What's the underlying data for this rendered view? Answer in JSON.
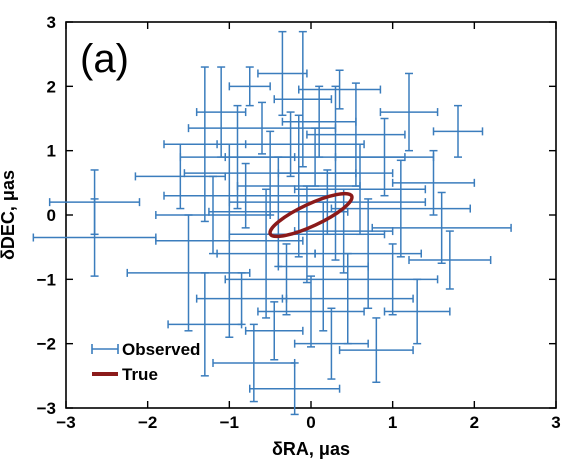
{
  "chart_data": {
    "type": "scatter",
    "panel_label": "(a)",
    "xlabel": "δRA, μas",
    "ylabel": "δDEC, μas",
    "xlim": [
      -3,
      3
    ],
    "ylim": [
      -3,
      3
    ],
    "xticks": [
      "−3",
      "−2",
      "−1",
      "0",
      "1",
      "2",
      "3"
    ],
    "yticks": [
      "−3",
      "−2",
      "−1",
      "0",
      "1",
      "2",
      "3"
    ],
    "grid": false,
    "legend_position": "bottom-left",
    "colors": {
      "observed": "#3b7dbd",
      "true": "#8b1a1a"
    },
    "series": [
      {
        "name": "Observed",
        "style": "errorbar",
        "points": [
          {
            "x": -2.65,
            "y": 0.2,
            "xerr": 0.55,
            "yerr": 0.5
          },
          {
            "x": -2.65,
            "y": -0.35,
            "xerr": 0.75,
            "yerr": 0.6
          },
          {
            "x": -1.6,
            "y": 0.6,
            "xerr": 0.55,
            "yerr": 0.5
          },
          {
            "x": -1.5,
            "y": -0.9,
            "xerr": 0.75,
            "yerr": 0.9
          },
          {
            "x": -1.3,
            "y": 1.1,
            "xerr": 0.5,
            "yerr": 1.2
          },
          {
            "x": -1.3,
            "y": -1.7,
            "xerr": 0.45,
            "yerr": 0.8
          },
          {
            "x": -1.2,
            "y": 0.0,
            "xerr": 0.7,
            "yerr": 0.6
          },
          {
            "x": -1.1,
            "y": 1.6,
            "xerr": 0.3,
            "yerr": 0.7
          },
          {
            "x": -1.0,
            "y": -0.4,
            "xerr": 0.9,
            "yerr": 1.5
          },
          {
            "x": -0.9,
            "y": 0.9,
            "xerr": 0.7,
            "yerr": 0.8
          },
          {
            "x": -0.85,
            "y": -1.3,
            "xerr": 0.55,
            "yerr": 0.4
          },
          {
            "x": -0.8,
            "y": 0.3,
            "xerr": 1.0,
            "yerr": 0.5
          },
          {
            "x": -0.75,
            "y": 2.0,
            "xerr": 0.25,
            "yerr": 0.3
          },
          {
            "x": -0.7,
            "y": -2.3,
            "xerr": 0.5,
            "yerr": 0.6
          },
          {
            "x": -0.6,
            "y": 1.35,
            "xerr": 0.9,
            "yerr": 0.4
          },
          {
            "x": -0.55,
            "y": -0.6,
            "xerr": 0.6,
            "yerr": 1.0
          },
          {
            "x": -0.5,
            "y": 0.65,
            "xerr": 1.05,
            "yerr": 0.65
          },
          {
            "x": -0.45,
            "y": -1.8,
            "xerr": 0.35,
            "yerr": 0.45
          },
          {
            "x": -0.4,
            "y": 0.05,
            "xerr": 0.85,
            "yerr": 0.85
          },
          {
            "x": -0.35,
            "y": 2.2,
            "xerr": 0.3,
            "yerr": 0.65
          },
          {
            "x": -0.3,
            "y": -1.0,
            "xerr": 0.75,
            "yerr": 0.55
          },
          {
            "x": -0.25,
            "y": 1.1,
            "xerr": 0.9,
            "yerr": 0.5
          },
          {
            "x": -0.2,
            "y": -2.7,
            "xerr": 0.55,
            "yerr": 0.4
          },
          {
            "x": -0.15,
            "y": 0.45,
            "xerr": 0.75,
            "yerr": 1.1
          },
          {
            "x": -0.1,
            "y": 1.8,
            "xerr": 0.35,
            "yerr": 1.05
          },
          {
            "x": -0.05,
            "y": -0.3,
            "xerr": 0.95,
            "yerr": 0.75
          },
          {
            "x": 0.0,
            "y": -1.5,
            "xerr": 0.65,
            "yerr": 0.55
          },
          {
            "x": 0.05,
            "y": 0.9,
            "xerr": 1.1,
            "yerr": 0.45
          },
          {
            "x": 0.1,
            "y": 1.45,
            "xerr": 0.45,
            "yerr": 0.55
          },
          {
            "x": 0.15,
            "y": -0.8,
            "xerr": 0.55,
            "yerr": 1.0
          },
          {
            "x": 0.2,
            "y": 0.2,
            "xerr": 1.2,
            "yerr": 0.5
          },
          {
            "x": 0.25,
            "y": -2.0,
            "xerr": 0.45,
            "yerr": 0.55
          },
          {
            "x": 0.3,
            "y": 0.65,
            "xerr": 0.7,
            "yerr": 1.35
          },
          {
            "x": 0.35,
            "y": 1.95,
            "xerr": 0.5,
            "yerr": 0.3
          },
          {
            "x": 0.4,
            "y": -0.25,
            "xerr": 0.6,
            "yerr": 0.65
          },
          {
            "x": 0.45,
            "y": -1.3,
            "xerr": 0.8,
            "yerr": 0.7
          },
          {
            "x": 0.55,
            "y": 1.25,
            "xerr": 0.6,
            "yerr": 0.8
          },
          {
            "x": 0.6,
            "y": 0.4,
            "xerr": 0.8,
            "yerr": 0.7
          },
          {
            "x": 0.7,
            "y": -0.6,
            "xerr": 0.65,
            "yerr": 0.85
          },
          {
            "x": 0.8,
            "y": -2.1,
            "xerr": 0.45,
            "yerr": 0.5
          },
          {
            "x": 0.9,
            "y": 0.9,
            "xerr": 0.6,
            "yerr": 0.6
          },
          {
            "x": 1.0,
            "y": -1.0,
            "xerr": 0.55,
            "yerr": 0.55
          },
          {
            "x": 1.1,
            "y": 0.1,
            "xerr": 0.85,
            "yerr": 0.75
          },
          {
            "x": 1.2,
            "y": 1.6,
            "xerr": 0.35,
            "yerr": 0.6
          },
          {
            "x": 1.3,
            "y": -1.5,
            "xerr": 0.4,
            "yerr": 0.5
          },
          {
            "x": 1.5,
            "y": 0.5,
            "xerr": 0.5,
            "yerr": 0.5
          },
          {
            "x": 1.6,
            "y": -0.2,
            "xerr": 0.85,
            "yerr": 0.55
          },
          {
            "x": 1.8,
            "y": 1.3,
            "xerr": 0.3,
            "yerr": 0.4
          },
          {
            "x": 1.7,
            "y": -0.7,
            "xerr": 0.5,
            "yerr": 0.45
          }
        ]
      },
      {
        "name": "True",
        "style": "ellipse",
        "center": [
          0.0,
          0.0
        ],
        "semi_major": 0.55,
        "semi_minor": 0.17,
        "angle_deg": 25
      }
    ]
  }
}
